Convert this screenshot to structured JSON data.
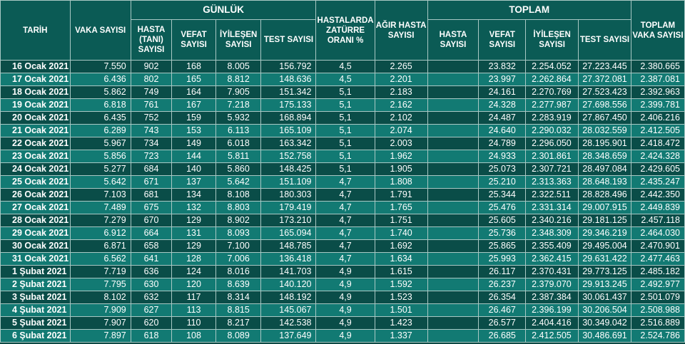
{
  "headers": {
    "tarih": "TARİH",
    "vaka": "VAKA SAYISI",
    "gunluk": "GÜNLÜK",
    "hasta_tani": "HASTA (TANI) SAYISI",
    "vefat": "VEFAT SAYISI",
    "iyilesen": "İYİLEŞEN SAYISI",
    "test": "TEST SAYISI",
    "zaturre": "HASTALARDA ZATÜRRE ORANI %",
    "agir": "AĞIR HASTA SAYISI",
    "toplam": "TOPLAM",
    "t_hasta": "HASTA SAYISI",
    "t_vefat": "VEFAT SAYISI",
    "t_iyilesen": "İYİLEŞEN SAYISI",
    "t_test": "TEST SAYISI",
    "t_vaka": "TOPLAM VAKA SAYISI"
  },
  "rows": [
    [
      "16 Ocak 2021",
      "7.550",
      "902",
      "168",
      "8.005",
      "156.792",
      "4,5",
      "2.265",
      "",
      "23.832",
      "2.254.052",
      "27.223.445",
      "2.380.665"
    ],
    [
      "17 Ocak 2021",
      "6.436",
      "802",
      "165",
      "8.812",
      "148.636",
      "4,5",
      "2.201",
      "",
      "23.997",
      "2.262.864",
      "27.372.081",
      "2.387.081"
    ],
    [
      "18 Ocak 2021",
      "5.862",
      "749",
      "164",
      "7.905",
      "151.342",
      "5,1",
      "2.183",
      "",
      "24.161",
      "2.270.769",
      "27.523.423",
      "2.392.963"
    ],
    [
      "19 Ocak 2021",
      "6.818",
      "761",
      "167",
      "7.218",
      "175.133",
      "5,1",
      "2.162",
      "",
      "24.328",
      "2.277.987",
      "27.698.556",
      "2.399.781"
    ],
    [
      "20 Ocak 2021",
      "6.435",
      "752",
      "159",
      "5.932",
      "168.894",
      "5,1",
      "2.102",
      "",
      "24.487",
      "2.283.919",
      "27.867.450",
      "2.406.216"
    ],
    [
      "21 Ocak 2021",
      "6.289",
      "743",
      "153",
      "6.113",
      "165.109",
      "5,1",
      "2.074",
      "",
      "24.640",
      "2.290.032",
      "28.032.559",
      "2.412.505"
    ],
    [
      "22 Ocak 2021",
      "5.967",
      "734",
      "149",
      "6.018",
      "163.342",
      "5,1",
      "2.003",
      "",
      "24.789",
      "2.296.050",
      "28.195.901",
      "2.418.472"
    ],
    [
      "23 Ocak 2021",
      "5.856",
      "723",
      "144",
      "5.811",
      "152.758",
      "5,1",
      "1.962",
      "",
      "24.933",
      "2.301.861",
      "28.348.659",
      "2.424.328"
    ],
    [
      "24 Ocak 2021",
      "5.277",
      "684",
      "140",
      "5.860",
      "148.425",
      "5,1",
      "1.905",
      "",
      "25.073",
      "2.307.721",
      "28.497.084",
      "2.429.605"
    ],
    [
      "25 Ocak 2021",
      "5.642",
      "671",
      "137",
      "5.642",
      "151.109",
      "4,7",
      "1.808",
      "",
      "25.210",
      "2.313.363",
      "28.648.193",
      "2.435.247"
    ],
    [
      "26 Ocak 2021",
      "7.103",
      "681",
      "134",
      "8.108",
      "180.303",
      "4,7",
      "1.791",
      "",
      "25.344",
      "2.322.511",
      "28.828.496",
      "2.442.350"
    ],
    [
      "27 Ocak 2021",
      "7.489",
      "675",
      "132",
      "8.803",
      "179.419",
      "4,7",
      "1.765",
      "",
      "25.476",
      "2.331.314",
      "29.007.915",
      "2.449.839"
    ],
    [
      "28 Ocak 2021",
      "7.279",
      "670",
      "129",
      "8.902",
      "173.210",
      "4,7",
      "1.751",
      "",
      "25.605",
      "2.340.216",
      "29.181.125",
      "2.457.118"
    ],
    [
      "29 Ocak 2021",
      "6.912",
      "664",
      "131",
      "8.093",
      "165.094",
      "4,7",
      "1.740",
      "",
      "25.736",
      "2.348.309",
      "29.346.219",
      "2.464.030"
    ],
    [
      "30 Ocak 2021",
      "6.871",
      "658",
      "129",
      "7.100",
      "148.785",
      "4,7",
      "1.692",
      "",
      "25.865",
      "2.355.409",
      "29.495.004",
      "2.470.901"
    ],
    [
      "31 Ocak 2021",
      "6.562",
      "641",
      "128",
      "7.006",
      "136.418",
      "4,7",
      "1.634",
      "",
      "25.993",
      "2.362.415",
      "29.631.422",
      "2.477.463"
    ],
    [
      "1 Şubat 2021",
      "7.719",
      "636",
      "124",
      "8.016",
      "141.703",
      "4,9",
      "1.615",
      "",
      "26.117",
      "2.370.431",
      "29.773.125",
      "2.485.182"
    ],
    [
      "2 Şubat 2021",
      "7.795",
      "630",
      "120",
      "8.639",
      "140.120",
      "4,9",
      "1.592",
      "",
      "26.237",
      "2.379.070",
      "29.913.245",
      "2.492.977"
    ],
    [
      "3 Şubat 2021",
      "8.102",
      "632",
      "117",
      "8.314",
      "148.192",
      "4,9",
      "1.523",
      "",
      "26.354",
      "2.387.384",
      "30.061.437",
      "2.501.079"
    ],
    [
      "4 Şubat 2021",
      "7.909",
      "627",
      "113",
      "8.815",
      "145.067",
      "4,9",
      "1.501",
      "",
      "26.467",
      "2.396.199",
      "30.206.504",
      "2.508.988"
    ],
    [
      "5 Şubat 2021",
      "7.907",
      "620",
      "110",
      "8.217",
      "142.538",
      "4,9",
      "1.423",
      "",
      "26.577",
      "2.404.416",
      "30.349.042",
      "2.516.889"
    ],
    [
      "6 Şubat 2021",
      "7.897",
      "618",
      "108",
      "8.089",
      "137.649",
      "4,9",
      "1.337",
      "",
      "26.685",
      "2.412.505",
      "30.486.691",
      "2.524.786"
    ]
  ]
}
